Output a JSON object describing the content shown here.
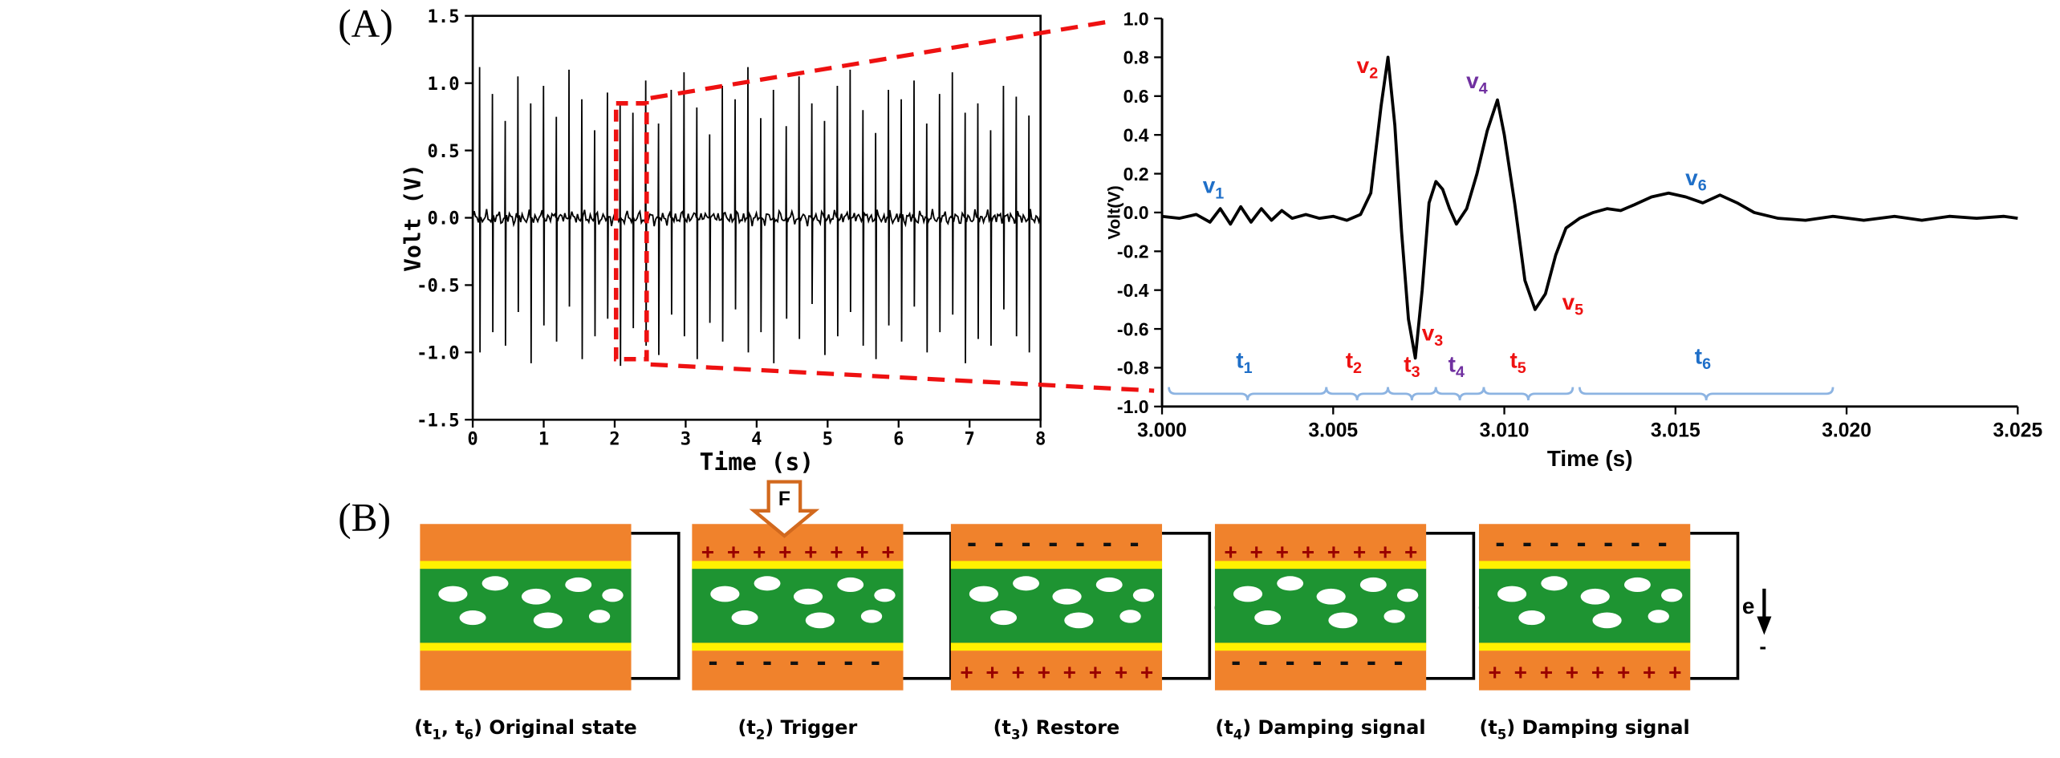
{
  "panel_a": {
    "label": "(A)"
  },
  "panel_b": {
    "label": "(B)",
    "colors": {
      "orange": "#F0822C",
      "green": "#1E9432",
      "yellow": "#FFF100",
      "bubble": "#FFFFFF",
      "plus": "#990000",
      "minus": "#111111",
      "wire": "#000000",
      "force_arrow": "#D2691E"
    },
    "positions": [
      318,
      524,
      720,
      920,
      1120
    ],
    "bubbles": [
      [
        25,
        98,
        11,
        6
      ],
      [
        57,
        90,
        10,
        5.5
      ],
      [
        88,
        100,
        11,
        6
      ],
      [
        120,
        91,
        10,
        5.5
      ],
      [
        146,
        99,
        8,
        5
      ],
      [
        40,
        116,
        10,
        5.5
      ],
      [
        97,
        118,
        11,
        6
      ],
      [
        136,
        115,
        8,
        5
      ]
    ],
    "plus_symbol": "+",
    "minus_symbol": "-",
    "electron_label": "e",
    "minus_below_label": "-",
    "states": [
      {
        "name": "original-state",
        "caption": [
          [
            "(t",
            0
          ],
          [
            "1",
            1
          ],
          [
            ", t",
            0
          ],
          [
            "6",
            1
          ],
          [
            ") Original state",
            0
          ]
        ],
        "top_charge": null,
        "bottom_charge": null,
        "electron": null,
        "force": null
      },
      {
        "name": "trigger",
        "caption": [
          [
            "(t",
            0
          ],
          [
            "2",
            1
          ],
          [
            ") Trigger",
            0
          ]
        ],
        "top_charge": "plus",
        "bottom_charge": "minus",
        "electron": {
          "dir": "up",
          "minus_below": false
        },
        "force": {
          "label": "F"
        }
      },
      {
        "name": "restore",
        "caption": [
          [
            "(t",
            0
          ],
          [
            "3",
            1
          ],
          [
            ") Restore",
            0
          ]
        ],
        "top_charge": "minus",
        "bottom_charge": "plus",
        "electron": {
          "dir": "down",
          "minus_below": true
        },
        "force": null
      },
      {
        "name": "damping-signal-1",
        "caption": [
          [
            "(t",
            0
          ],
          [
            "4",
            1
          ],
          [
            ") Damping signal",
            0
          ]
        ],
        "top_charge": "plus",
        "bottom_charge": "minus",
        "electron": {
          "dir": "up",
          "minus_below": false
        },
        "force": null
      },
      {
        "name": "damping-signal-2",
        "caption": [
          [
            "(t",
            0
          ],
          [
            "5",
            1
          ],
          [
            ") Damping signal",
            0
          ]
        ],
        "top_charge": "minus",
        "bottom_charge": "plus",
        "electron": {
          "dir": "down",
          "minus_below": true
        },
        "force": null
      }
    ]
  },
  "chart_data": [
    {
      "type": "line",
      "panel": "A-left-overview",
      "title": "",
      "xlabel": "Time (s)",
      "ylabel": "Volt (V)",
      "xlim": [
        0,
        8
      ],
      "ylim": [
        -1.5,
        1.5
      ],
      "xticks": [
        0,
        1,
        2,
        3,
        4,
        5,
        6,
        7,
        8
      ],
      "yticks": [
        "1.5",
        "1.0",
        "0.5",
        "0.0",
        "-0.5",
        "-1.0",
        "-1.5"
      ],
      "signal_description": "periodic biphasic voltage spike train (~5.5 Hz) with low-amplitude baseline noise",
      "spikes": {
        "times": [
          0.1,
          0.28,
          0.46,
          0.64,
          0.82,
          1.0,
          1.18,
          1.36,
          1.54,
          1.72,
          1.9,
          2.08,
          2.26,
          2.44,
          2.62,
          2.8,
          2.98,
          3.16,
          3.34,
          3.52,
          3.7,
          3.88,
          4.06,
          4.24,
          4.42,
          4.6,
          4.78,
          4.96,
          5.14,
          5.32,
          5.5,
          5.68,
          5.86,
          6.04,
          6.22,
          6.4,
          6.58,
          6.76,
          6.94,
          7.12,
          7.3,
          7.48,
          7.66,
          7.84
        ],
        "up": [
          1.12,
          0.92,
          0.72,
          1.05,
          0.85,
          0.98,
          0.75,
          1.1,
          0.88,
          0.65,
          0.93,
          0.84,
          0.78,
          1.02,
          0.7,
          0.95,
          1.08,
          0.82,
          0.62,
          0.98,
          0.88,
          1.12,
          0.74,
          0.95,
          0.68,
          1.05,
          0.85,
          0.72,
          0.98,
          1.1,
          0.8,
          0.63,
          0.95,
          0.88,
          1.02,
          0.7,
          0.92,
          1.08,
          0.78,
          0.85,
          0.65,
          0.98,
          0.9,
          0.76
        ],
        "down": [
          -1.0,
          -0.85,
          -0.95,
          -0.7,
          -1.08,
          -0.8,
          -0.92,
          -0.66,
          -1.05,
          -0.88,
          -0.75,
          -1.1,
          -0.82,
          -0.95,
          -1.02,
          -0.72,
          -0.88,
          -1.05,
          -0.78,
          -0.92,
          -0.68,
          -1.0,
          -0.85,
          -1.08,
          -0.75,
          -0.9,
          -0.64,
          -1.02,
          -0.88,
          -0.7,
          -0.95,
          -1.05,
          -0.8,
          -0.92,
          -0.66,
          -1.0,
          -0.85,
          -0.72,
          -1.08,
          -0.9,
          -0.95,
          -0.68,
          -0.88,
          -1.0
        ]
      },
      "highlight_box": {
        "x0": 2.02,
        "x1": 2.45,
        "y0": -1.05,
        "y1": 0.85,
        "color": "#EE1111",
        "style": "dashed"
      }
    },
    {
      "type": "line",
      "panel": "A-right-zoom",
      "title": "",
      "xlabel": "Time (s)",
      "ylabel": "Volt(V)",
      "xlim": [
        3.0,
        3.025
      ],
      "ylim": [
        -1.0,
        1.0
      ],
      "xticks": [
        "3.000",
        "3.005",
        "3.010",
        "3.015",
        "3.020",
        "3.025"
      ],
      "yticks": [
        "1.0",
        "0.8",
        "0.6",
        "0.4",
        "0.2",
        "0.0",
        "-0.2",
        "-0.4",
        "-0.6",
        "-0.8",
        "-1.0"
      ],
      "points": [
        [
          3.0,
          -0.02
        ],
        [
          3.0005,
          -0.03
        ],
        [
          3.001,
          -0.01
        ],
        [
          3.0014,
          -0.05
        ],
        [
          3.0017,
          0.02
        ],
        [
          3.002,
          -0.06
        ],
        [
          3.0023,
          0.03
        ],
        [
          3.0026,
          -0.05
        ],
        [
          3.0029,
          0.02
        ],
        [
          3.0032,
          -0.04
        ],
        [
          3.0035,
          0.01
        ],
        [
          3.0038,
          -0.03
        ],
        [
          3.0042,
          -0.01
        ],
        [
          3.0046,
          -0.03
        ],
        [
          3.005,
          -0.02
        ],
        [
          3.0054,
          -0.04
        ],
        [
          3.0058,
          -0.01
        ],
        [
          3.0061,
          0.1
        ],
        [
          3.0064,
          0.55
        ],
        [
          3.0066,
          0.8
        ],
        [
          3.0068,
          0.45
        ],
        [
          3.007,
          -0.1
        ],
        [
          3.0072,
          -0.55
        ],
        [
          3.0074,
          -0.75
        ],
        [
          3.0076,
          -0.4
        ],
        [
          3.0078,
          0.05
        ],
        [
          3.008,
          0.16
        ],
        [
          3.0082,
          0.12
        ],
        [
          3.0084,
          0.02
        ],
        [
          3.0086,
          -0.06
        ],
        [
          3.0089,
          0.02
        ],
        [
          3.0092,
          0.2
        ],
        [
          3.0095,
          0.42
        ],
        [
          3.0098,
          0.58
        ],
        [
          3.01,
          0.4
        ],
        [
          3.0103,
          0.05
        ],
        [
          3.0106,
          -0.35
        ],
        [
          3.0109,
          -0.5
        ],
        [
          3.0112,
          -0.42
        ],
        [
          3.0115,
          -0.22
        ],
        [
          3.0118,
          -0.08
        ],
        [
          3.0122,
          -0.03
        ],
        [
          3.0126,
          0.0
        ],
        [
          3.013,
          0.02
        ],
        [
          3.0134,
          0.01
        ],
        [
          3.0138,
          0.04
        ],
        [
          3.0143,
          0.08
        ],
        [
          3.0148,
          0.1
        ],
        [
          3.0153,
          0.08
        ],
        [
          3.0158,
          0.05
        ],
        [
          3.0163,
          0.09
        ],
        [
          3.0168,
          0.05
        ],
        [
          3.0173,
          0.0
        ],
        [
          3.018,
          -0.03
        ],
        [
          3.0188,
          -0.04
        ],
        [
          3.0196,
          -0.02
        ],
        [
          3.0205,
          -0.04
        ],
        [
          3.0214,
          -0.02
        ],
        [
          3.0222,
          -0.04
        ],
        [
          3.023,
          -0.02
        ],
        [
          3.0238,
          -0.03
        ],
        [
          3.0246,
          -0.02
        ],
        [
          3.025,
          -0.03
        ]
      ],
      "annotations": [
        {
          "text": "v",
          "sub": "1",
          "x": 3.0015,
          "y": 0.1,
          "color": "#1F6FC8"
        },
        {
          "text": "v",
          "sub": "2",
          "x": 3.006,
          "y": 0.72,
          "color": "#EE1111"
        },
        {
          "text": "v",
          "sub": "4",
          "x": 3.0092,
          "y": 0.64,
          "color": "#7030A0"
        },
        {
          "text": "v",
          "sub": "3",
          "x": 3.0079,
          "y": -0.66,
          "color": "#EE1111"
        },
        {
          "text": "v",
          "sub": "5",
          "x": 3.012,
          "y": -0.5,
          "color": "#EE1111"
        },
        {
          "text": "v",
          "sub": "6",
          "x": 3.0156,
          "y": 0.14,
          "color": "#1F6FC8"
        },
        {
          "text": "t",
          "sub": "1",
          "x": 3.0024,
          "y": -0.8,
          "color": "#1F6FC8"
        },
        {
          "text": "t",
          "sub": "2",
          "x": 3.0056,
          "y": -0.8,
          "color": "#EE1111"
        },
        {
          "text": "t",
          "sub": "3",
          "x": 3.0073,
          "y": -0.82,
          "color": "#EE1111"
        },
        {
          "text": "t",
          "sub": "4",
          "x": 3.0086,
          "y": -0.82,
          "color": "#7030A0"
        },
        {
          "text": "t",
          "sub": "5",
          "x": 3.0104,
          "y": -0.8,
          "color": "#EE1111"
        },
        {
          "text": "t",
          "sub": "6",
          "x": 3.0158,
          "y": -0.78,
          "color": "#1F6FC8"
        }
      ],
      "braces": {
        "color": "#8DB4E2",
        "y": -0.9,
        "spans": [
          [
            3.0002,
            3.0048
          ],
          [
            3.0048,
            3.0066
          ],
          [
            3.0066,
            3.008
          ],
          [
            3.008,
            3.0094
          ],
          [
            3.0094,
            3.012
          ],
          [
            3.0122,
            3.0196
          ]
        ]
      }
    }
  ]
}
